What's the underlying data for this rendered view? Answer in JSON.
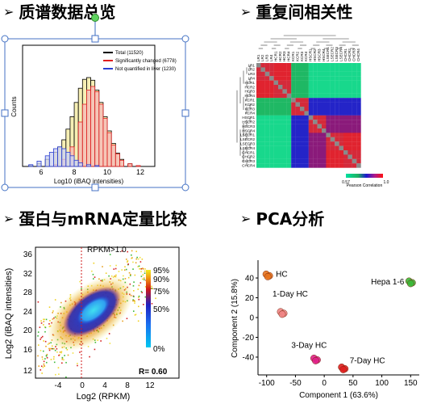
{
  "sections": {
    "s1": {
      "arrow": "➢",
      "title": "质谱数据总览"
    },
    "s2": {
      "arrow": "➢",
      "title": "重复间相关性"
    },
    "s3": {
      "arrow": "➢",
      "title": "蛋白与mRNA定量比较"
    },
    "s4": {
      "arrow": "➢",
      "title": "PCA分析"
    }
  },
  "histogram": {
    "ylabel": "Counts",
    "xlabel": "Log10 (iBAQ intensities)",
    "xticks": [
      "6",
      "8",
      "10",
      "12"
    ],
    "legend": [
      {
        "label": "Total (11520)",
        "color": "#000000"
      },
      {
        "label": "Significantly changed (6778)",
        "color": "#e01e1e"
      },
      {
        "label": "Not quantified in liver (1230)",
        "color": "#2b3fd1"
      }
    ]
  },
  "heatmap": {
    "samples": [
      "LR1",
      "LR2",
      "LR3",
      "LR4",
      "HCR1",
      "HCR2",
      "HCR3",
      "HCR4",
      "KCR1",
      "KCR2",
      "KCR3",
      "KCR4",
      "HSCR1",
      "HSCR2",
      "HSCR3",
      "HSCR4",
      "LSECR1",
      "LSECR2",
      "LSECR3",
      "LSECR4",
      "CHCR1",
      "CHCR2",
      "CHCR3",
      "CHCR4"
    ],
    "scale_min": "0.57",
    "scale_max": "1.0",
    "scale_label": "Pearson Correlation"
  },
  "scatter": {
    "title": "RPKM>1.0",
    "xlabel": "Log2 (RPKM)",
    "ylabel": "Log2 (iBAQ intensities)",
    "xticks": [
      "-4",
      "0",
      "4",
      "8",
      "12"
    ],
    "yticks": [
      "36",
      "32",
      "28",
      "24",
      "20",
      "16",
      "12"
    ],
    "density_labels": [
      "95%",
      "90%",
      "75%",
      "50%",
      "0%"
    ],
    "r_value": "R= 0.60"
  },
  "chart_data": [
    {
      "type": "bar",
      "title": "",
      "xlabel": "Log10 (iBAQ intensities)",
      "ylabel": "Counts",
      "xlim": [
        5,
        13
      ],
      "series": [
        {
          "name": "Total (11520)",
          "x": [
            5.5,
            6,
            6.5,
            7,
            7.25,
            7.5,
            7.75,
            8,
            8.25,
            8.5,
            8.75,
            9,
            9.25,
            9.5,
            9.75,
            10,
            10.25,
            10.5,
            10.75,
            11,
            11.5,
            12
          ],
          "values": [
            0.01,
            0.03,
            0.08,
            0.16,
            0.22,
            0.3,
            0.42,
            0.56,
            0.72,
            0.88,
            0.98,
            1.0,
            0.97,
            0.86,
            0.72,
            0.56,
            0.4,
            0.26,
            0.15,
            0.08,
            0.03,
            0.01
          ]
        },
        {
          "name": "Significantly changed (6778)",
          "x": [
            7,
            7.5,
            8,
            8.5,
            8.75,
            9,
            9.25,
            9.5,
            9.75,
            10,
            10.25,
            10.5,
            10.75,
            11,
            11.5,
            12
          ],
          "values": [
            0.02,
            0.08,
            0.22,
            0.5,
            0.7,
            0.86,
            0.9,
            0.84,
            0.7,
            0.54,
            0.38,
            0.24,
            0.14,
            0.07,
            0.03,
            0.01
          ]
        },
        {
          "name": "Not quantified in liver (1230)",
          "x": [
            5.5,
            6,
            6.5,
            6.75,
            7,
            7.25,
            7.5,
            7.75,
            8,
            8.25,
            8.5,
            9,
            9.5
          ],
          "values": [
            0.02,
            0.06,
            0.12,
            0.16,
            0.2,
            0.22,
            0.2,
            0.16,
            0.12,
            0.07,
            0.04,
            0.02,
            0.01
          ]
        }
      ]
    },
    {
      "type": "heatmap",
      "title": "",
      "categories": [
        "LR1",
        "LR2",
        "LR3",
        "LR4",
        "HCR1",
        "HCR2",
        "HCR3",
        "HCR4",
        "KCR1",
        "KCR2",
        "KCR3",
        "KCR4",
        "HSCR1",
        "HSCR2",
        "HSCR3",
        "HSCR4",
        "LSECR1",
        "LSECR2",
        "LSECR3",
        "LSECR4",
        "CHCR1",
        "CHCR2",
        "CHCR3",
        "CHCR4"
      ],
      "value_range": [
        0.57,
        1.0
      ],
      "colorbar_label": "Pearson Correlation"
    },
    {
      "type": "scatter",
      "title": "RPKM>1.0",
      "xlabel": "Log2 (RPKM)",
      "ylabel": "Log2 (iBAQ intensities)",
      "xlim": [
        -7,
        14
      ],
      "ylim": [
        11,
        38
      ],
      "annotation": "R= 0.60"
    },
    {
      "type": "scatter",
      "title": "",
      "xlabel": "Component 1 (63.6%)",
      "ylabel": "Component 2 (15.8%)",
      "xlim": [
        -115,
        165
      ],
      "ylim": [
        -58,
        58
      ],
      "xticks": [
        -100,
        -50,
        0,
        50,
        100,
        150
      ],
      "yticks": [
        -40,
        -20,
        0,
        20,
        40
      ],
      "points": [
        {
          "label": "HC",
          "x": -98,
          "y": 43,
          "color": "#e8741e"
        },
        {
          "label": "1-Day HC",
          "x": -73,
          "y": 5,
          "color": "#f08585"
        },
        {
          "label": "3-Day HC",
          "x": -15,
          "y": -42,
          "color": "#e0218a"
        },
        {
          "label": "7-Day HC",
          "x": 33,
          "y": -51,
          "color": "#e02020"
        },
        {
          "label": "Hepa 1-6",
          "x": 150,
          "y": 36,
          "color": "#3cb838"
        }
      ]
    }
  ]
}
